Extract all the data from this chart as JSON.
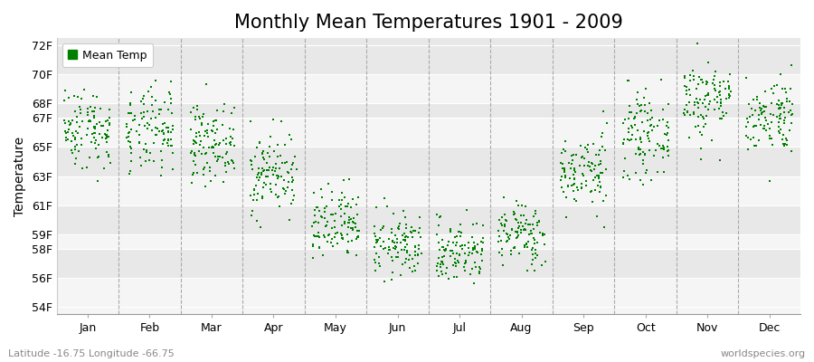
{
  "title": "Monthly Mean Temperatures 1901 - 2009",
  "ylabel": "Temperature",
  "xlabel_labels": [
    "Jan",
    "Feb",
    "Mar",
    "Apr",
    "May",
    "Jun",
    "Jul",
    "Aug",
    "Sep",
    "Oct",
    "Nov",
    "Dec"
  ],
  "yticks": [
    54,
    56,
    58,
    59,
    61,
    63,
    65,
    67,
    68,
    70,
    72
  ],
  "ytick_labels": [
    "54F",
    "56F",
    "58F",
    "59F",
    "61F",
    "63F",
    "65F",
    "67F",
    "68F",
    "70F",
    "72F"
  ],
  "ylim": [
    53.5,
    72.5
  ],
  "dot_color": "#008000",
  "background_color": "#ffffff",
  "plot_bg_light": "#f0f0f0",
  "plot_bg_dark": "#e0e0e0",
  "legend_label": "Mean Temp",
  "footer_left": "Latitude -16.75 Longitude -66.75",
  "footer_right": "worldspecies.org",
  "title_fontsize": 15,
  "label_fontsize": 9,
  "footer_fontsize": 8,
  "monthly_means": [
    66.3,
    66.0,
    65.3,
    63.2,
    59.5,
    58.2,
    57.8,
    59.0,
    63.3,
    65.8,
    68.3,
    67.2
  ],
  "monthly_stds": [
    1.4,
    1.5,
    1.3,
    1.4,
    1.3,
    1.1,
    1.1,
    1.1,
    1.3,
    1.4,
    1.4,
    1.3
  ],
  "n_years": 109,
  "seed": 42,
  "marker_size": 3
}
